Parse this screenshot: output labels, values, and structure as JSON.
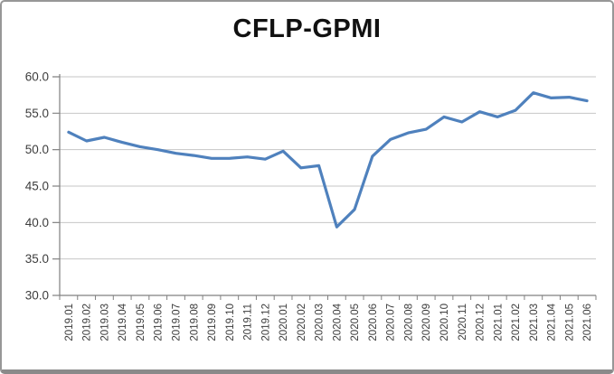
{
  "title": "CFLP-GPMI",
  "chart_data": {
    "type": "line",
    "title": "CFLP-GPMI",
    "x": [
      "2019.01",
      "2019.02",
      "2019.03",
      "2019.04",
      "2019.05",
      "2019.06",
      "2019.07",
      "2019.08",
      "2019.09",
      "2019.10",
      "2019.11",
      "2019.12",
      "2020.01",
      "2020.02",
      "2020.03",
      "2020.04",
      "2020.05",
      "2020.06",
      "2020.07",
      "2020.08",
      "2020.09",
      "2020.10",
      "2020.11",
      "2020.12",
      "2021.01",
      "2021.02",
      "2021.03",
      "2021.04",
      "2021.05",
      "2021.06"
    ],
    "series": [
      {
        "name": "CFLP-GPMI",
        "values": [
          52.4,
          51.2,
          51.7,
          51.0,
          50.4,
          50.0,
          49.5,
          49.2,
          48.8,
          48.8,
          49.0,
          48.7,
          49.8,
          47.5,
          47.8,
          39.4,
          41.8,
          49.1,
          51.4,
          52.3,
          52.8,
          54.5,
          53.8,
          55.2,
          54.5,
          55.4,
          57.8,
          57.1,
          57.2,
          56.7
        ]
      }
    ],
    "ylim": [
      30,
      60
    ],
    "ytick_step": 5,
    "yticks": [
      "60.0",
      "55.0",
      "50.0",
      "45.0",
      "40.0",
      "35.0",
      "30.0"
    ],
    "xlabel": "",
    "ylabel": "",
    "grid": true,
    "legend": "none",
    "line_color": "#4F81BD",
    "grid_color": "#c6c6c6",
    "axis_color": "#808080"
  }
}
